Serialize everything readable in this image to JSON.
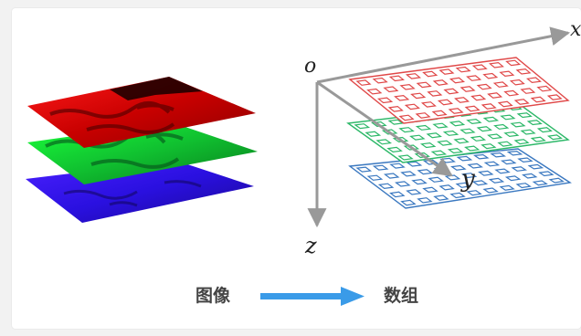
{
  "diagram": {
    "axis_labels": {
      "origin": "o",
      "x_axis": "x",
      "y_axis": "y",
      "z_axis": "z"
    },
    "caption": {
      "left": "图像",
      "right": "数组"
    },
    "layer_colors": {
      "red": "#e00000",
      "green": "#10c030",
      "blue": "#2a10e0"
    },
    "grid_colors": {
      "red": "#e04848",
      "green": "#2cb868",
      "blue": "#3a78c0"
    },
    "arrow_color": "#3a9be8",
    "axis_color": "#999999"
  }
}
